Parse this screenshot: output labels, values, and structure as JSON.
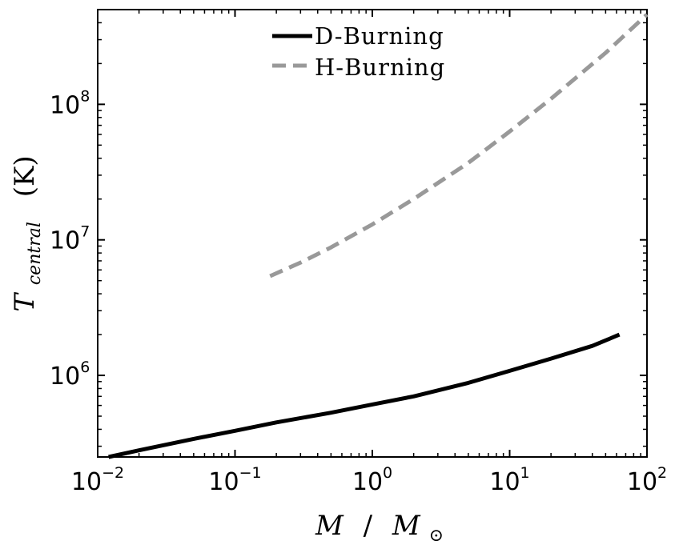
{
  "chart_data": {
    "type": "line",
    "xscale": "log",
    "yscale": "log",
    "xlim": [
      0.01,
      100
    ],
    "ylim": [
      250000,
      500000000
    ],
    "xticks": [
      {
        "value": 0.01,
        "base": "10",
        "exp": "−2"
      },
      {
        "value": 0.1,
        "base": "10",
        "exp": "−1"
      },
      {
        "value": 1,
        "base": "10",
        "exp": "0"
      },
      {
        "value": 10,
        "base": "10",
        "exp": "1"
      },
      {
        "value": 100,
        "base": "10",
        "exp": "2"
      }
    ],
    "yticks": [
      {
        "value": 1000000,
        "base": "10",
        "exp": "6"
      },
      {
        "value": 10000000,
        "base": "10",
        "exp": "7"
      },
      {
        "value": 100000000,
        "base": "10",
        "exp": "8"
      }
    ],
    "xlabel": {
      "main": "M",
      "sep": "/",
      "sub_main": "M",
      "sub": "⊙"
    },
    "ylabel": {
      "main": "T",
      "sub": "central",
      "unit": "(K)"
    },
    "legend_position": "top-center",
    "grid": false,
    "series": [
      {
        "name": "D-Burning",
        "color": "#000000",
        "dash": "solid",
        "x": [
          0.012,
          0.02,
          0.05,
          0.1,
          0.2,
          0.5,
          1,
          2,
          5,
          10,
          20,
          40,
          63
        ],
        "y": [
          250000,
          280000,
          340000,
          390000,
          450000,
          530000,
          610000,
          700000,
          880000,
          1080000,
          1330000,
          1650000,
          2000000
        ]
      },
      {
        "name": "H-Burning",
        "color": "#999999",
        "dash": "dashed",
        "x": [
          0.18,
          0.3,
          0.5,
          1,
          2,
          5,
          10,
          20,
          50,
          100
        ],
        "y": [
          5400000,
          6800000,
          8800000,
          13000000,
          20000000,
          37000000,
          63000000,
          110000000,
          240000000,
          460000000
        ]
      }
    ]
  }
}
